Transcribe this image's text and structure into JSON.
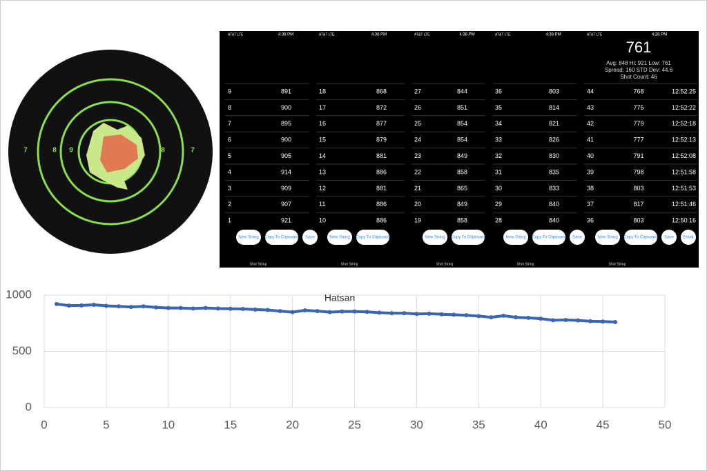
{
  "chart_data": {
    "type": "line",
    "title": "Hatsan",
    "x": [
      1,
      2,
      3,
      4,
      5,
      6,
      7,
      8,
      9,
      10,
      11,
      12,
      13,
      14,
      15,
      16,
      17,
      18,
      19,
      20,
      21,
      22,
      23,
      24,
      25,
      26,
      27,
      28,
      29,
      30,
      31,
      32,
      33,
      34,
      35,
      36,
      37,
      38,
      39,
      40,
      41,
      42,
      43,
      44,
      45,
      46
    ],
    "series": [
      {
        "name": "Hatsan",
        "color": "#3b64b3",
        "values": [
          921,
          907,
          909,
          914,
          905,
          900,
          895,
          900,
          891,
          886,
          886,
          881,
          886,
          881,
          879,
          877,
          872,
          868,
          858,
          849,
          865,
          858,
          849,
          854,
          854,
          851,
          844,
          840,
          840,
          833,
          835,
          830,
          826,
          821,
          814,
          803,
          817,
          803,
          798,
          791,
          777,
          779,
          775,
          768,
          765,
          761
        ]
      }
    ],
    "xlim": [
      0,
      50
    ],
    "xticks": [
      0,
      5,
      10,
      15,
      20,
      25,
      30,
      35,
      40,
      45,
      50
    ],
    "ylim": [
      0,
      1000
    ],
    "yticks": [
      0,
      500,
      1000
    ],
    "grid": true
  },
  "target": {
    "ring_labels": [
      "7",
      "8",
      "9",
      "8",
      "7"
    ]
  },
  "phones": [
    {
      "carrier": "AT&T LTE",
      "time": "4:38 PM",
      "rows": [
        [
          9,
          891
        ],
        [
          8,
          900
        ],
        [
          7,
          895
        ],
        [
          6,
          900
        ],
        [
          5,
          905
        ],
        [
          4,
          914
        ],
        [
          3,
          909
        ],
        [
          2,
          907
        ],
        [
          1,
          921
        ]
      ],
      "buttons": [
        "New String",
        "Copy To Clipboard",
        "Save"
      ],
      "tab": "Shot String"
    },
    {
      "carrier": "AT&T LTE",
      "time": "4:38 PM",
      "rows": [
        [
          18,
          868
        ],
        [
          17,
          872
        ],
        [
          16,
          877
        ],
        [
          15,
          879
        ],
        [
          14,
          881
        ],
        [
          13,
          886
        ],
        [
          12,
          881
        ],
        [
          11,
          886
        ],
        [
          10,
          886
        ]
      ],
      "buttons": [
        "New String",
        "Copy To Clipboard"
      ],
      "tab": "Shot String"
    },
    {
      "carrier": "AT&T LTE",
      "time": "4:38 PM",
      "rows": [
        [
          27,
          844
        ],
        [
          26,
          851
        ],
        [
          25,
          854
        ],
        [
          24,
          854
        ],
        [
          23,
          849
        ],
        [
          22,
          858
        ],
        [
          21,
          865
        ],
        [
          20,
          849
        ],
        [
          19,
          858
        ]
      ],
      "buttons": [
        "New String",
        "Copy To Clipboard"
      ],
      "tab": "Shot String"
    },
    {
      "carrier": "AT&T LTE",
      "time": "4:38 PM",
      "rows": [
        [
          36,
          803
        ],
        [
          35,
          814
        ],
        [
          34,
          821
        ],
        [
          33,
          826
        ],
        [
          32,
          830
        ],
        [
          31,
          835
        ],
        [
          30,
          833
        ],
        [
          29,
          840
        ],
        [
          28,
          840
        ]
      ],
      "buttons": [
        "New String",
        "Copy To Clipboard",
        "Save"
      ],
      "tab": "Shot String"
    },
    {
      "carrier": "AT&T LTE",
      "time": "4:38 PM",
      "header": {
        "last": 761,
        "line1": "Avg: 848 Hi: 921 Low: 761",
        "line2": "Spread: 160 STD Dev: 44.6",
        "line3": "Shot Count: 46"
      },
      "rows": [
        [
          44,
          768,
          "12:52:25"
        ],
        [
          43,
          775,
          "12:52:22"
        ],
        [
          42,
          779,
          "12:52:18"
        ],
        [
          41,
          777,
          "12:52:13"
        ],
        [
          40,
          791,
          "12:52:08"
        ],
        [
          39,
          798,
          "12:51:58"
        ],
        [
          38,
          803,
          "12:51:53"
        ],
        [
          37,
          817,
          "12:51:46"
        ],
        [
          36,
          803,
          "12:50:16"
        ]
      ],
      "buttons": [
        "New String",
        "Copy To Clipboard",
        "Save",
        "Email"
      ],
      "tab": "Shot String"
    }
  ]
}
